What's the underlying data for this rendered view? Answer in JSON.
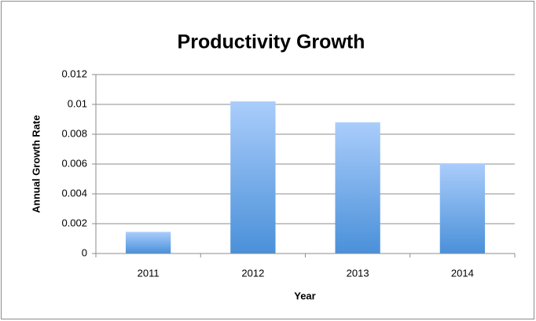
{
  "chart_data": {
    "type": "bar",
    "title": "Productivity Growth",
    "x_label": "Year",
    "y_label": "Annual Growth Rate",
    "categories": [
      "2011",
      "2012",
      "2013",
      "2014"
    ],
    "values": [
      0.00145,
      0.0102,
      0.0088,
      0.00605
    ],
    "color": "#4a90d9",
    "ylim": [
      0,
      0.012
    ],
    "yticks": [
      0,
      0.002,
      0.004,
      0.006,
      0.008,
      0.01,
      0.012
    ],
    "grid": true
  }
}
